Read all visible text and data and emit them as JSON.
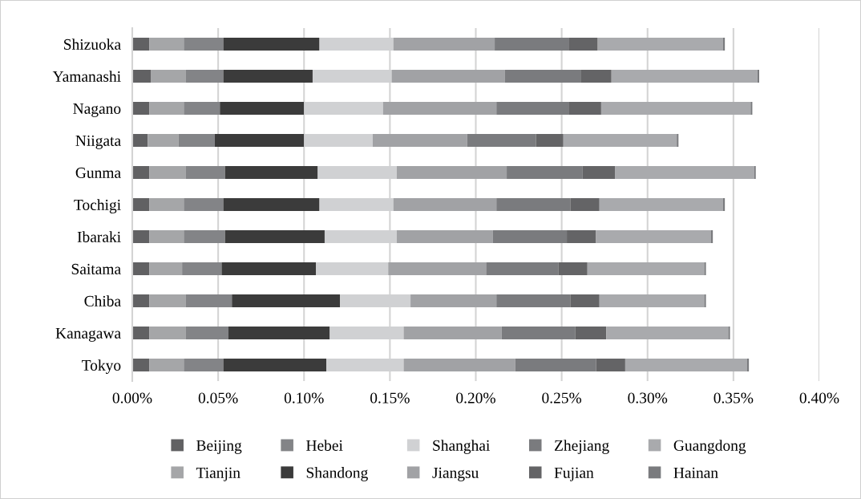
{
  "chart_data": {
    "type": "bar",
    "orientation": "horizontal",
    "stacked": true,
    "categories": [
      "Shizuoka",
      "Yamanashi",
      "Nagano",
      "Niigata",
      "Gunma",
      "Tochigi",
      "Ibaraki",
      "Saitama",
      "Chiba",
      "Kanagawa",
      "Tokyo"
    ],
    "series": [
      {
        "name": "Beijing",
        "color": "#616163",
        "values": [
          0.01,
          0.011,
          0.01,
          0.009,
          0.01,
          0.01,
          0.01,
          0.01,
          0.01,
          0.01,
          0.01
        ]
      },
      {
        "name": "Tianjin",
        "color": "#a5a6a8",
        "values": [
          0.02,
          0.02,
          0.02,
          0.018,
          0.021,
          0.02,
          0.02,
          0.019,
          0.021,
          0.021,
          0.02
        ]
      },
      {
        "name": "Hebei",
        "color": "#838487",
        "values": [
          0.023,
          0.022,
          0.021,
          0.021,
          0.023,
          0.023,
          0.024,
          0.023,
          0.027,
          0.025,
          0.023
        ]
      },
      {
        "name": "Shandong",
        "color": "#3b3b3b",
        "values": [
          0.056,
          0.052,
          0.049,
          0.052,
          0.054,
          0.056,
          0.058,
          0.055,
          0.063,
          0.059,
          0.06
        ]
      },
      {
        "name": "Shanghai",
        "color": "#d0d1d3",
        "values": [
          0.043,
          0.046,
          0.046,
          0.04,
          0.046,
          0.043,
          0.042,
          0.042,
          0.041,
          0.043,
          0.045
        ]
      },
      {
        "name": "Jiangsu",
        "color": "#a1a2a5",
        "values": [
          0.059,
          0.066,
          0.066,
          0.055,
          0.064,
          0.06,
          0.056,
          0.057,
          0.05,
          0.057,
          0.065
        ]
      },
      {
        "name": "Zhejiang",
        "color": "#7a7b7e",
        "values": [
          0.043,
          0.044,
          0.042,
          0.04,
          0.044,
          0.043,
          0.043,
          0.042,
          0.043,
          0.043,
          0.047
        ]
      },
      {
        "name": "Fujian",
        "color": "#646466",
        "values": [
          0.017,
          0.018,
          0.019,
          0.016,
          0.019,
          0.017,
          0.017,
          0.017,
          0.017,
          0.018,
          0.017
        ]
      },
      {
        "name": "Guangdong",
        "color": "#a9aaad",
        "values": [
          0.073,
          0.085,
          0.087,
          0.066,
          0.081,
          0.072,
          0.067,
          0.068,
          0.061,
          0.071,
          0.071
        ]
      },
      {
        "name": "Hainan",
        "color": "#7a7b7e",
        "values": [
          0.001,
          0.001,
          0.001,
          0.001,
          0.001,
          0.001,
          0.001,
          0.001,
          0.001,
          0.001,
          0.001
        ]
      }
    ],
    "xlim": [
      0,
      0.4
    ],
    "xticks": [
      {
        "value": 0,
        "label": "0.00%"
      },
      {
        "value": 0.05,
        "label": "0.05%"
      },
      {
        "value": 0.1,
        "label": "0.10%"
      },
      {
        "value": 0.15,
        "label": "0.15%"
      },
      {
        "value": 0.2,
        "label": "0.20%"
      },
      {
        "value": 0.25,
        "label": "0.25%"
      },
      {
        "value": 0.3,
        "label": "0.30%"
      },
      {
        "value": 0.35,
        "label": "0.35%"
      },
      {
        "value": 0.4,
        "label": "0.40%"
      }
    ],
    "grid": "x",
    "legend": "bottom"
  }
}
